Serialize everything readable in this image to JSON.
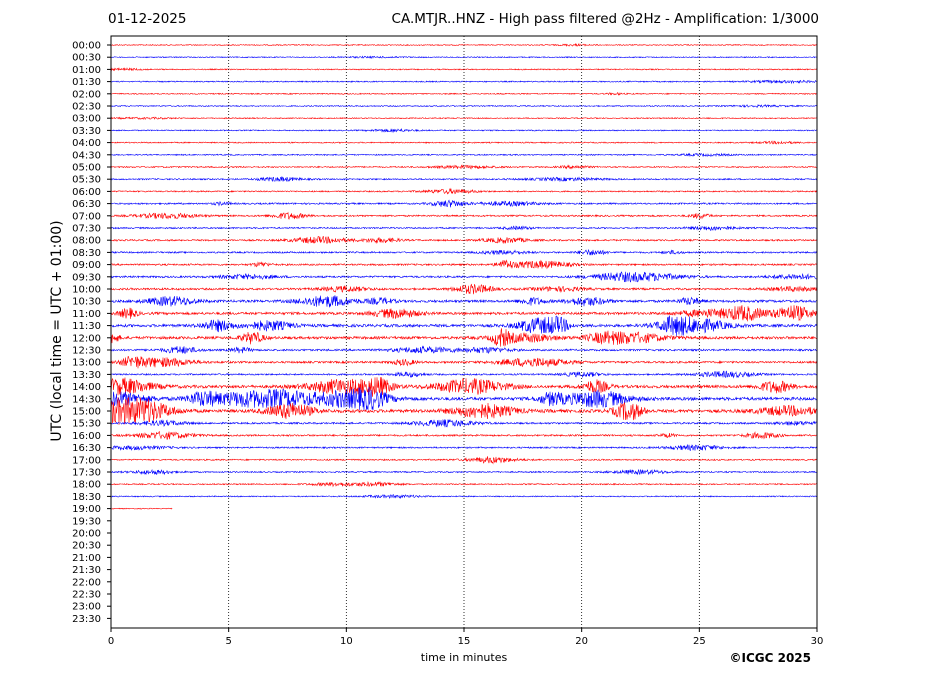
{
  "header": {
    "date": "01-12-2025",
    "title": "CA.MTJR..HNZ - High pass filtered @2Hz - Amplification: 1/3000"
  },
  "footer": {
    "copyright": "©ICGC 2025"
  },
  "chart_data": {
    "type": "line",
    "title": "CA.MTJR..HNZ - High pass filtered @2Hz - Amplification: 1/3000",
    "xlabel": "time in minutes",
    "ylabel": "UTC (local time = UTC + 01:00)",
    "xlim": [
      0,
      30
    ],
    "x_ticks": [
      0,
      5,
      10,
      15,
      20,
      25,
      30
    ],
    "x_tick_labels": [
      "0",
      "5",
      "10",
      "15",
      "20",
      "25",
      "30"
    ],
    "vertical_gridlines_at": [
      5,
      10,
      15,
      20,
      25
    ],
    "grid": "vertical dotted",
    "trace_colors": [
      "#ff0000",
      "#0000ff"
    ],
    "y_tick_labels": [
      "00:00",
      "00:30",
      "01:00",
      "01:30",
      "02:00",
      "02:30",
      "03:00",
      "03:30",
      "04:00",
      "04:30",
      "05:00",
      "05:30",
      "06:00",
      "06:30",
      "07:00",
      "07:30",
      "08:00",
      "08:30",
      "09:00",
      "09:30",
      "10:00",
      "10:30",
      "11:00",
      "11:30",
      "12:00",
      "12:30",
      "13:00",
      "13:30",
      "14:00",
      "14:30",
      "15:00",
      "15:30",
      "16:00",
      "16:30",
      "17:00",
      "17:30",
      "18:00",
      "18:30",
      "19:00",
      "19:30",
      "20:00",
      "20:30",
      "21:00",
      "21:30",
      "22:00",
      "22:30",
      "23:00",
      "23:30"
    ],
    "series": [
      {
        "start": "00:00",
        "color": "#ff0000",
        "duration_min": 30,
        "activity": 0.1
      },
      {
        "start": "00:30",
        "color": "#0000ff",
        "duration_min": 30,
        "activity": 0.12
      },
      {
        "start": "01:00",
        "color": "#ff0000",
        "duration_min": 30,
        "activity": 0.15
      },
      {
        "start": "01:30",
        "color": "#0000ff",
        "duration_min": 30,
        "activity": 0.18
      },
      {
        "start": "02:00",
        "color": "#ff0000",
        "duration_min": 30,
        "activity": 0.15
      },
      {
        "start": "02:30",
        "color": "#0000ff",
        "duration_min": 30,
        "activity": 0.15
      },
      {
        "start": "03:00",
        "color": "#ff0000",
        "duration_min": 30,
        "activity": 0.15
      },
      {
        "start": "03:30",
        "color": "#0000ff",
        "duration_min": 30,
        "activity": 0.15
      },
      {
        "start": "04:00",
        "color": "#ff0000",
        "duration_min": 30,
        "activity": 0.18
      },
      {
        "start": "04:30",
        "color": "#0000ff",
        "duration_min": 30,
        "activity": 0.18
      },
      {
        "start": "05:00",
        "color": "#ff0000",
        "duration_min": 30,
        "activity": 0.22
      },
      {
        "start": "05:30",
        "color": "#0000ff",
        "duration_min": 30,
        "activity": 0.25
      },
      {
        "start": "06:00",
        "color": "#ff0000",
        "duration_min": 30,
        "activity": 0.25
      },
      {
        "start": "06:30",
        "color": "#0000ff",
        "duration_min": 30,
        "activity": 0.35
      },
      {
        "start": "07:00",
        "color": "#ff0000",
        "duration_min": 30,
        "activity": 0.35
      },
      {
        "start": "07:30",
        "color": "#0000ff",
        "duration_min": 30,
        "activity": 0.3
      },
      {
        "start": "08:00",
        "color": "#ff0000",
        "duration_min": 30,
        "activity": 0.35
      },
      {
        "start": "08:30",
        "color": "#0000ff",
        "duration_min": 30,
        "activity": 0.35
      },
      {
        "start": "09:00",
        "color": "#ff0000",
        "duration_min": 30,
        "activity": 0.4
      },
      {
        "start": "09:30",
        "color": "#0000ff",
        "duration_min": 30,
        "activity": 0.45
      },
      {
        "start": "10:00",
        "color": "#ff0000",
        "duration_min": 30,
        "activity": 0.5
      },
      {
        "start": "10:30",
        "color": "#0000ff",
        "duration_min": 30,
        "activity": 0.7
      },
      {
        "start": "11:00",
        "color": "#ff0000",
        "duration_min": 30,
        "activity": 0.7
      },
      {
        "start": "11:30",
        "color": "#0000ff",
        "duration_min": 30,
        "activity": 0.85
      },
      {
        "start": "12:00",
        "color": "#ff0000",
        "duration_min": 30,
        "activity": 0.8
      },
      {
        "start": "12:30",
        "color": "#0000ff",
        "duration_min": 30,
        "activity": 0.45
      },
      {
        "start": "13:00",
        "color": "#ff0000",
        "duration_min": 30,
        "activity": 0.5
      },
      {
        "start": "13:30",
        "color": "#0000ff",
        "duration_min": 30,
        "activity": 0.35
      },
      {
        "start": "14:00",
        "color": "#ff0000",
        "duration_min": 30,
        "activity": 0.9
      },
      {
        "start": "14:30",
        "color": "#0000ff",
        "duration_min": 30,
        "activity": 1.0
      },
      {
        "start": "15:00",
        "color": "#ff0000",
        "duration_min": 30,
        "activity": 1.0
      },
      {
        "start": "15:30",
        "color": "#0000ff",
        "duration_min": 30,
        "activity": 0.4
      },
      {
        "start": "16:00",
        "color": "#ff0000",
        "duration_min": 30,
        "activity": 0.4
      },
      {
        "start": "16:30",
        "color": "#0000ff",
        "duration_min": 30,
        "activity": 0.3
      },
      {
        "start": "17:00",
        "color": "#ff0000",
        "duration_min": 30,
        "activity": 0.25
      },
      {
        "start": "17:30",
        "color": "#0000ff",
        "duration_min": 30,
        "activity": 0.25
      },
      {
        "start": "18:00",
        "color": "#ff0000",
        "duration_min": 30,
        "activity": 0.2
      },
      {
        "start": "18:30",
        "color": "#0000ff",
        "duration_min": 30,
        "activity": 0.15
      },
      {
        "start": "19:00",
        "color": "#ff0000",
        "duration_min": 2.6,
        "activity": 0.05
      }
    ]
  }
}
